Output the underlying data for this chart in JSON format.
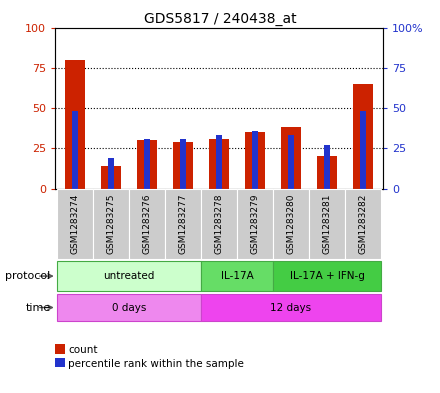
{
  "title": "GDS5817 / 240438_at",
  "samples": [
    "GSM1283274",
    "GSM1283275",
    "GSM1283276",
    "GSM1283277",
    "GSM1283278",
    "GSM1283279",
    "GSM1283280",
    "GSM1283281",
    "GSM1283282"
  ],
  "count_values": [
    80,
    14,
    30,
    29,
    31,
    35,
    38,
    20,
    65
  ],
  "percentile_values": [
    48,
    19,
    31,
    31,
    33,
    36,
    33,
    27,
    48
  ],
  "ylim": [
    0,
    100
  ],
  "yticks": [
    0,
    25,
    50,
    75,
    100
  ],
  "ytick_labels_right": [
    "0",
    "25",
    "50",
    "75",
    "100%"
  ],
  "bar_color_red": "#cc2200",
  "bar_color_blue": "#2233cc",
  "protocol_groups": [
    {
      "label": "untreated",
      "start": 0,
      "end": 3,
      "color": "#ccffcc",
      "border_color": "#44aa44"
    },
    {
      "label": "IL-17A",
      "start": 4,
      "end": 5,
      "color": "#66dd66",
      "border_color": "#44aa44"
    },
    {
      "label": "IL-17A + IFN-g",
      "start": 6,
      "end": 8,
      "color": "#44cc44",
      "border_color": "#44aa44"
    }
  ],
  "time_groups": [
    {
      "label": "0 days",
      "start": 0,
      "end": 3,
      "color": "#ee88ee",
      "border_color": "#cc44cc"
    },
    {
      "label": "12 days",
      "start": 4,
      "end": 8,
      "color": "#ee44ee",
      "border_color": "#cc44cc"
    }
  ],
  "protocol_label": "protocol",
  "time_label": "time",
  "legend_count": "count",
  "legend_percentile": "percentile rank within the sample",
  "red_bar_width": 0.55,
  "blue_bar_width": 0.15,
  "sample_bg_color": "#cccccc",
  "title_fontsize": 10,
  "axis_fontsize": 8,
  "label_fontsize": 7.5,
  "sample_fontsize": 6.5
}
